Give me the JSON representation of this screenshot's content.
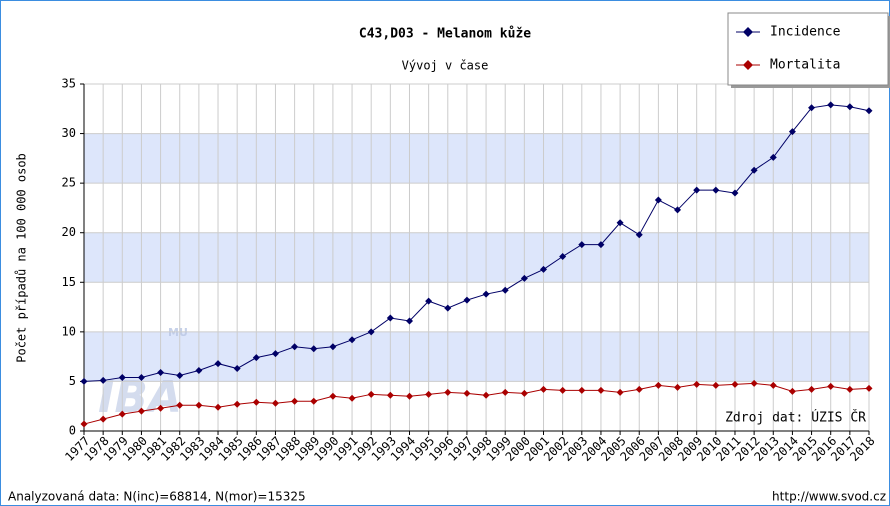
{
  "chart_data": {
    "type": "line",
    "title": "C43,D03 - Melanom kůže",
    "subtitle": "Vývoj v čase",
    "y_label": "Počet případů na 100 000 osob",
    "source": "Zdroj dat: ÚZIS ČR",
    "footer_left": "Analyzovaná data: N(inc)=68814, N(mor)=15325",
    "footer_right": "http://www.svod.cz",
    "watermark": "IBA",
    "watermark_sup": "MU",
    "categories": [
      "1977",
      "1978",
      "1979",
      "1980",
      "1981",
      "1982",
      "1983",
      "1984",
      "1985",
      "1986",
      "1987",
      "1988",
      "1989",
      "1990",
      "1991",
      "1992",
      "1993",
      "1994",
      "1995",
      "1996",
      "1997",
      "1998",
      "1999",
      "2000",
      "2001",
      "2002",
      "2003",
      "2004",
      "2005",
      "2006",
      "2007",
      "2008",
      "2009",
      "2010",
      "2011",
      "2012",
      "2013",
      "2014",
      "2015",
      "2016",
      "2017",
      "2018"
    ],
    "series": [
      {
        "name": "Incidence",
        "color": "#000066",
        "values": [
          5.0,
          5.1,
          5.4,
          5.4,
          5.9,
          5.6,
          6.1,
          6.8,
          6.3,
          7.4,
          7.8,
          8.5,
          8.3,
          8.5,
          9.2,
          10.0,
          11.4,
          11.1,
          13.1,
          12.4,
          13.2,
          13.8,
          14.2,
          15.4,
          16.3,
          17.6,
          18.8,
          18.8,
          21.0,
          19.8,
          23.3,
          22.3,
          24.3,
          24.3,
          24.0,
          26.3,
          27.6,
          30.2,
          32.6,
          32.9,
          32.7,
          32.3
        ]
      },
      {
        "name": "Mortalita",
        "color": "#aa0000",
        "values": [
          0.7,
          1.2,
          1.7,
          2.0,
          2.3,
          2.6,
          2.6,
          2.4,
          2.7,
          2.9,
          2.8,
          3.0,
          3.0,
          3.5,
          3.3,
          3.7,
          3.6,
          3.5,
          3.7,
          3.9,
          3.8,
          3.6,
          3.9,
          3.8,
          4.2,
          4.1,
          4.1,
          4.1,
          3.9,
          4.2,
          4.6,
          4.4,
          4.7,
          4.6,
          4.7,
          4.8,
          4.6,
          4.0,
          4.2,
          4.5,
          4.2,
          4.3
        ]
      }
    ],
    "ylim": [
      0,
      35
    ],
    "yticks": [
      0,
      5,
      10,
      15,
      20,
      25,
      30,
      35
    ],
    "grid": true,
    "band_color": "#dde6fb",
    "legend": "upper right"
  }
}
